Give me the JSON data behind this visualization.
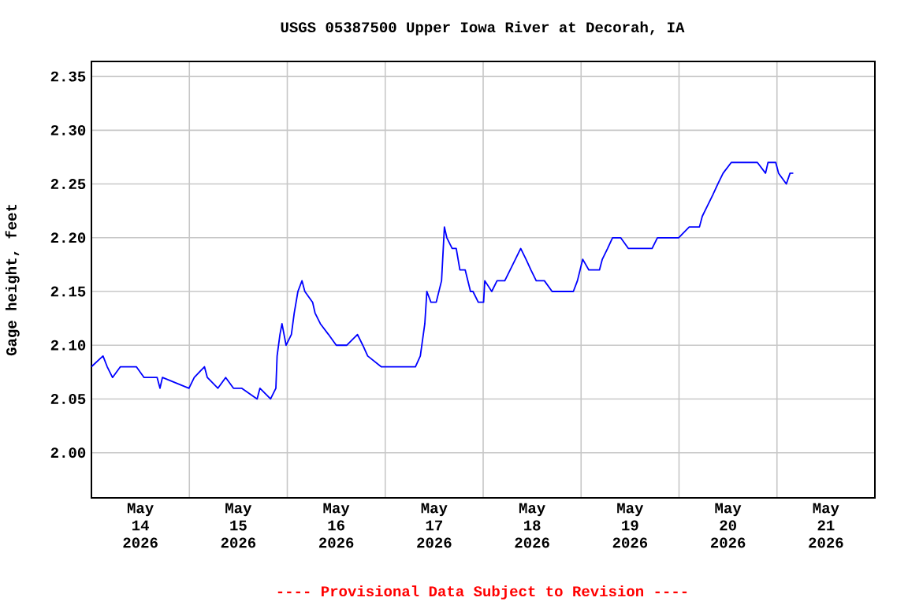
{
  "chart_data": {
    "type": "line",
    "title": "USGS 05387500 Upper Iowa River at Decorah, IA",
    "ylabel": "Gage height, feet",
    "annotations": [
      "---- Provisional Data Subject to Revision ----"
    ],
    "xlim": [
      "2026-05-14T00:00",
      "2026-05-22T00:00"
    ],
    "xticks": [
      {
        "value": "2026-05-15T00:00",
        "label": null
      },
      {
        "value": "2026-05-16T00:00",
        "label": null
      },
      {
        "value": "2026-05-17T00:00",
        "label": null
      },
      {
        "value": "2026-05-18T00:00",
        "label": null
      },
      {
        "value": "2026-05-19T00:00",
        "label": null
      },
      {
        "value": "2026-05-20T00:00",
        "label": null
      },
      {
        "value": "2026-05-21T00:00",
        "label": null
      },
      {
        "value": "2026-05-14T12:00",
        "label": "May 14 2026"
      },
      {
        "value": "2026-05-15T12:00",
        "label": "May 15 2026"
      },
      {
        "value": "2026-05-16T12:00",
        "label": "May 16 2026"
      },
      {
        "value": "2026-05-17T12:00",
        "label": "May 17 2026"
      },
      {
        "value": "2026-05-18T12:00",
        "label": "May 18 2026"
      },
      {
        "value": "2026-05-19T12:00",
        "label": "May 19 2026"
      },
      {
        "value": "2026-05-20T12:00",
        "label": "May 20 2026"
      },
      {
        "value": "2026-05-21T12:00",
        "label": "May 21 2026"
      }
    ],
    "ylim": [
      1.958,
      2.364
    ],
    "yticks": [
      {
        "value": 2.0,
        "label": "2.00"
      },
      {
        "value": 2.05,
        "label": "2.05"
      },
      {
        "value": 2.1,
        "label": "2.10"
      },
      {
        "value": 2.15,
        "label": "2.15"
      },
      {
        "value": 2.2,
        "label": "2.20"
      },
      {
        "value": 2.25,
        "label": "2.25"
      },
      {
        "value": 2.3,
        "label": "2.30"
      },
      {
        "value": 2.35,
        "label": "2.35"
      }
    ],
    "grid": true,
    "series": [
      {
        "color": "#0000ff",
        "x": [
          "2026-05-14T00:00",
          "2026-05-14T02:50",
          "2026-05-14T03:52",
          "2026-05-14T05:10",
          "2026-05-14T07:06",
          "2026-05-14T11:00",
          "2026-05-14T12:54",
          "2026-05-14T16:06",
          "2026-05-14T16:48",
          "2026-05-14T17:24",
          "2026-05-14T23:54",
          "2026-05-15T01:12",
          "2026-05-15T03:42",
          "2026-05-15T04:24",
          "2026-05-15T07:00",
          "2026-05-15T08:54",
          "2026-05-15T10:48",
          "2026-05-15T12:48",
          "2026-05-15T16:36",
          "2026-05-15T17:18",
          "2026-05-15T19:54",
          "2026-05-15T21:12",
          "2026-05-15T21:30",
          "2026-05-15T22:12",
          "2026-05-15T22:42",
          "2026-05-15T23:42",
          "2026-05-16T01:00",
          "2026-05-16T01:42",
          "2026-05-16T02:36",
          "2026-05-16T03:36",
          "2026-05-16T04:18",
          "2026-05-16T06:12",
          "2026-05-16T06:48",
          "2026-05-16T08:06",
          "2026-05-16T10:06",
          "2026-05-16T12:00",
          "2026-05-16T14:36",
          "2026-05-16T17:12",
          "2026-05-16T18:30",
          "2026-05-16T19:42",
          "2026-05-16T23:00",
          "2026-05-17T01:30",
          "2026-05-17T04:48",
          "2026-05-17T07:24",
          "2026-05-17T08:36",
          "2026-05-17T09:42",
          "2026-05-17T10:12",
          "2026-05-17T11:12",
          "2026-05-17T12:30",
          "2026-05-17T13:48",
          "2026-05-17T14:30",
          "2026-05-17T15:06",
          "2026-05-17T16:24",
          "2026-05-17T17:24",
          "2026-05-17T18:18",
          "2026-05-17T19:36",
          "2026-05-17T20:54",
          "2026-05-17T21:30",
          "2026-05-17T22:48",
          "2026-05-18T00:06",
          "2026-05-18T00:24",
          "2026-05-18T02:06",
          "2026-05-18T03:24",
          "2026-05-18T05:18",
          "2026-05-18T06:36",
          "2026-05-18T07:54",
          "2026-05-18T09:12",
          "2026-05-18T10:30",
          "2026-05-18T11:42",
          "2026-05-18T13:00",
          "2026-05-18T15:00",
          "2026-05-18T16:54",
          "2026-05-18T19:30",
          "2026-05-18T22:06",
          "2026-05-18T23:06",
          "2026-05-19T00:24",
          "2026-05-19T01:54",
          "2026-05-19T04:30",
          "2026-05-19T05:12",
          "2026-05-19T06:30",
          "2026-05-19T07:42",
          "2026-05-19T09:42",
          "2026-05-19T11:36",
          "2026-05-19T13:30",
          "2026-05-19T17:24",
          "2026-05-19T18:42",
          "2026-05-19T21:18",
          "2026-05-19T23:54",
          "2026-05-20T02:30",
          "2026-05-20T05:00",
          "2026-05-20T05:42",
          "2026-05-20T07:00",
          "2026-05-20T08:18",
          "2026-05-20T09:30",
          "2026-05-20T10:48",
          "2026-05-20T12:48",
          "2026-05-20T16:36",
          "2026-05-20T19:12",
          "2026-05-20T21:12",
          "2026-05-20T21:48",
          "2026-05-20T23:42",
          "2026-05-21T00:24",
          "2026-05-21T02:18",
          "2026-05-21T03:12",
          "2026-05-21T04:00"
        ],
        "values": [
          2.08,
          2.09,
          2.08,
          2.07,
          2.08,
          2.08,
          2.07,
          2.07,
          2.06,
          2.07,
          2.06,
          2.07,
          2.08,
          2.07,
          2.06,
          2.07,
          2.06,
          2.06,
          2.05,
          2.06,
          2.05,
          2.06,
          2.09,
          2.11,
          2.12,
          2.1,
          2.11,
          2.13,
          2.15,
          2.16,
          2.15,
          2.14,
          2.13,
          2.12,
          2.11,
          2.1,
          2.1,
          2.11,
          2.1,
          2.09,
          2.08,
          2.08,
          2.08,
          2.08,
          2.09,
          2.12,
          2.15,
          2.14,
          2.14,
          2.16,
          2.21,
          2.2,
          2.19,
          2.19,
          2.17,
          2.17,
          2.15,
          2.15,
          2.14,
          2.14,
          2.16,
          2.15,
          2.16,
          2.16,
          2.17,
          2.18,
          2.19,
          2.18,
          2.17,
          2.16,
          2.16,
          2.15,
          2.15,
          2.15,
          2.16,
          2.18,
          2.17,
          2.17,
          2.18,
          2.19,
          2.2,
          2.2,
          2.19,
          2.19,
          2.19,
          2.2,
          2.2,
          2.2,
          2.21,
          2.21,
          2.22,
          2.23,
          2.24,
          2.25,
          2.26,
          2.27,
          2.27,
          2.27,
          2.26,
          2.27,
          2.27,
          2.26,
          2.25,
          2.26,
          2.26
        ]
      }
    ]
  }
}
